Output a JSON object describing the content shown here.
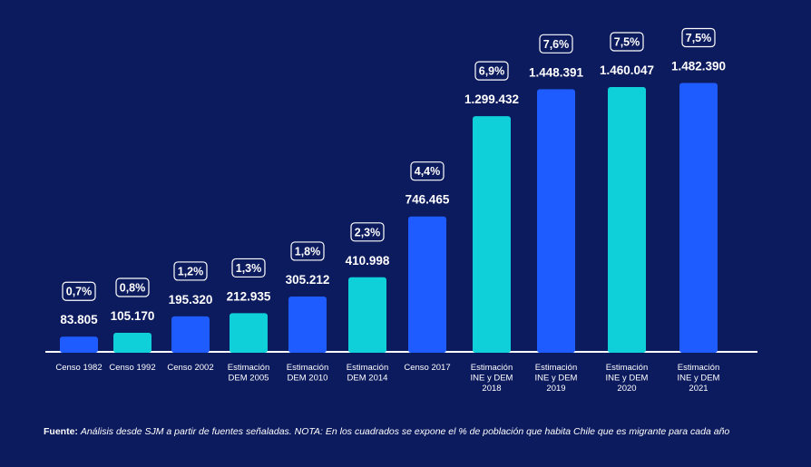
{
  "chart_data": {
    "type": "bar",
    "categories": [
      "Censo 1982",
      "Censo 1992",
      "Censo 2002",
      "Estimación DEM 2005",
      "Estimación DEM 2010",
      "Estimación DEM 2014",
      "Censo 2017",
      "Estimación INE y DEM 2018",
      "Estimación INE y DEM 2019",
      "Estimación INE y DEM 2020",
      "Estimación INE y DEM 2021"
    ],
    "category_lines": [
      [
        "Censo 1982"
      ],
      [
        "Censo 1992"
      ],
      [
        "Censo 2002"
      ],
      [
        "Estimación",
        "DEM 2005"
      ],
      [
        "Estimación",
        "DEM 2010"
      ],
      [
        "Estimación",
        "DEM 2014"
      ],
      [
        "Censo 2017"
      ],
      [
        "Estimación",
        "INE y DEM",
        "2018"
      ],
      [
        "Estimación",
        "INE y DEM",
        "2019"
      ],
      [
        "Estimación",
        "INE y DEM",
        "2020"
      ],
      [
        "Estimación",
        "INE y DEM",
        "2021"
      ]
    ],
    "values": [
      83805,
      105170,
      195320,
      212935,
      305212,
      410998,
      746465,
      1299432,
      1448391,
      1460047,
      1482390
    ],
    "value_labels": [
      "83.805",
      "105.170",
      "195.320",
      "212.935",
      "305.212",
      "410.998",
      "746.465",
      "1.299.432",
      "1.448.391",
      "1.460.047",
      "1.482.390"
    ],
    "percent_labels": [
      "0,7%",
      "0,8%",
      "1,2%",
      "1,3%",
      "1,8%",
      "2,3%",
      "4,4%",
      "6,9%",
      "7,6%",
      "7,5%",
      "7,5%"
    ],
    "bar_colors": [
      "#1e5cff",
      "#0fd0d8",
      "#1e5cff",
      "#0fd0d8",
      "#1e5cff",
      "#0fd0d8",
      "#1e5cff",
      "#0fd0d8",
      "#1e5cff",
      "#0fd0d8",
      "#1e5cff"
    ],
    "ylim": [
      0,
      1500000
    ],
    "grid": false,
    "legend": "none"
  },
  "footer": {
    "label": "Fuente:",
    "text": "Análisis desde SJM a partir de fuentes señaladas. NOTA: En los cuadrados se expone el % de población que habita Chile que es migrante para cada año"
  },
  "colors": {
    "background": "#0c1a5e",
    "axis": "#ffffff"
  }
}
